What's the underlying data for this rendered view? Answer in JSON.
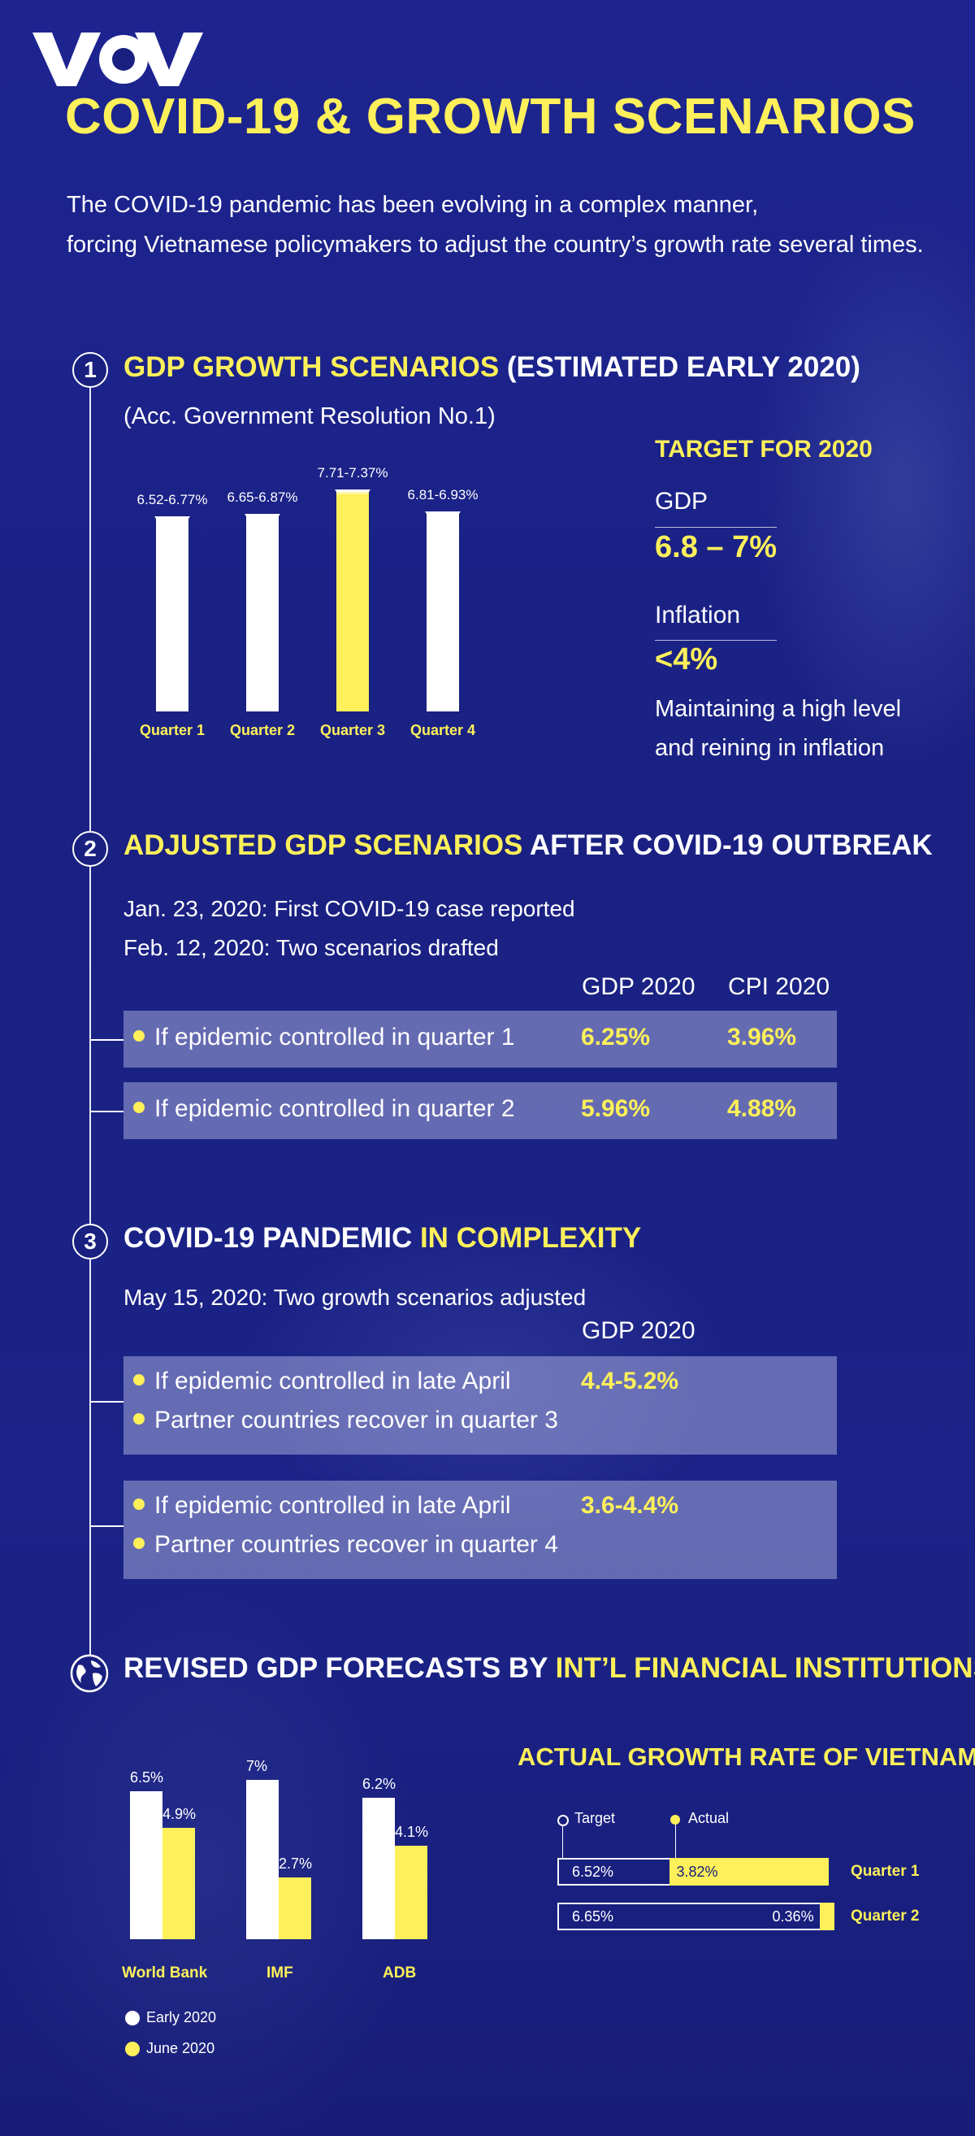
{
  "brand": {
    "logo_text": "VOV"
  },
  "header": {
    "title": "COVID-19 & GROWTH SCENARIOS",
    "intro_line1": "The COVID-19 pandemic has been evolving in a complex manner,",
    "intro_line2": "forcing Vietnamese policymakers to adjust the country’s growth rate several times."
  },
  "section1": {
    "number": "1",
    "title_yellow": "GDP GROWTH SCENARIOS",
    "title_white": " (ESTIMATED EARLY 2020)",
    "subtitle": "(Acc. Government Resolution No.1)",
    "target": {
      "heading": "TARGET FOR 2020",
      "gdp_label": "GDP",
      "gdp_value": "6.8 – 7%",
      "inflation_label": "Inflation",
      "inflation_value": "<4%",
      "note_line1": "Maintaining a high level",
      "note_line2": "and reining in inflation"
    }
  },
  "section2": {
    "number": "2",
    "title_yellow": "ADJUSTED GDP SCENARIOS",
    "title_white": " AFTER COVID-19 OUTBREAK",
    "line1": "Jan. 23, 2020: First COVID-19 case reported",
    "line2": "Feb. 12, 2020: Two scenarios drafted",
    "col_gdp": "GDP 2020",
    "col_cpi": "CPI 2020",
    "rows": [
      {
        "label": "If epidemic controlled in quarter 1",
        "gdp": "6.25%",
        "cpi": "3.96%"
      },
      {
        "label": "If epidemic controlled in quarter 2",
        "gdp": "5.96%",
        "cpi": "4.88%"
      }
    ]
  },
  "section3": {
    "number": "3",
    "title_white": "COVID-19 PANDEMIC",
    "title_yellow": " IN COMPLEXITY",
    "line1": "May 15, 2020: Two growth scenarios adjusted",
    "col_gdp": "GDP 2020",
    "rows": [
      {
        "line1": "If epidemic controlled in late April",
        "line2": "Partner countries recover in quarter 3",
        "gdp": "4.4-5.2%"
      },
      {
        "line1": "If epidemic controlled in late April",
        "line2": "Partner countries recover in quarter 4",
        "gdp": "3.6-4.4%"
      }
    ]
  },
  "section4": {
    "title_white": "REVISED GDP FORECASTS BY ",
    "title_yellow": "INT’L FINANCIAL INSTITUTIONS",
    "actual_heading": "ACTUAL GROWTH RATE OF VIETNAM"
  },
  "colors": {
    "accent": "#fdf05a",
    "background": "#1a2080",
    "bar_white": "#ffffff",
    "row_box": "#cdd2f0"
  },
  "chart_data": [
    {
      "type": "bar",
      "categories": [
        "Quarter 1",
        "Quarter 2",
        "Quarter 3",
        "Quarter 4"
      ],
      "value_labels": [
        "6.52-6.77%",
        "6.65-6.87%",
        "7.71-7.37%",
        "6.81-6.93%"
      ],
      "ranges": [
        [
          6.52,
          6.77
        ],
        [
          6.65,
          6.87
        ],
        [
          7.71,
          7.37
        ],
        [
          6.81,
          6.93
        ]
      ],
      "highlight": "Quarter 3",
      "ylim": [
        0,
        8
      ]
    },
    {
      "type": "bar",
      "categories": [
        "World Bank",
        "IMF",
        "ADB"
      ],
      "series": [
        {
          "name": "Early 2020",
          "values": [
            6.5,
            7,
            6.2
          ],
          "labels": [
            "6.5%",
            "7%",
            "6.2%"
          ],
          "color": "#ffffff"
        },
        {
          "name": "June 2020",
          "values": [
            4.9,
            2.7,
            4.1
          ],
          "labels": [
            "4.9%",
            "2.7%",
            "4.1%"
          ],
          "color": "#fdf05a"
        }
      ],
      "ylim": [
        0,
        7.5
      ],
      "legend": "bottom-left"
    },
    {
      "type": "bar",
      "orientation": "horizontal",
      "categories": [
        "Quarter 1",
        "Quarter 2"
      ],
      "series": [
        {
          "name": "Target",
          "values": [
            6.52,
            6.65
          ],
          "labels": [
            "6.52%",
            "6.65%"
          ]
        },
        {
          "name": "Actual",
          "values": [
            3.82,
            0.36
          ],
          "labels": [
            "3.82%",
            "0.36%"
          ]
        }
      ],
      "xlim": [
        0,
        6.65
      ],
      "legend": "top-left"
    }
  ]
}
